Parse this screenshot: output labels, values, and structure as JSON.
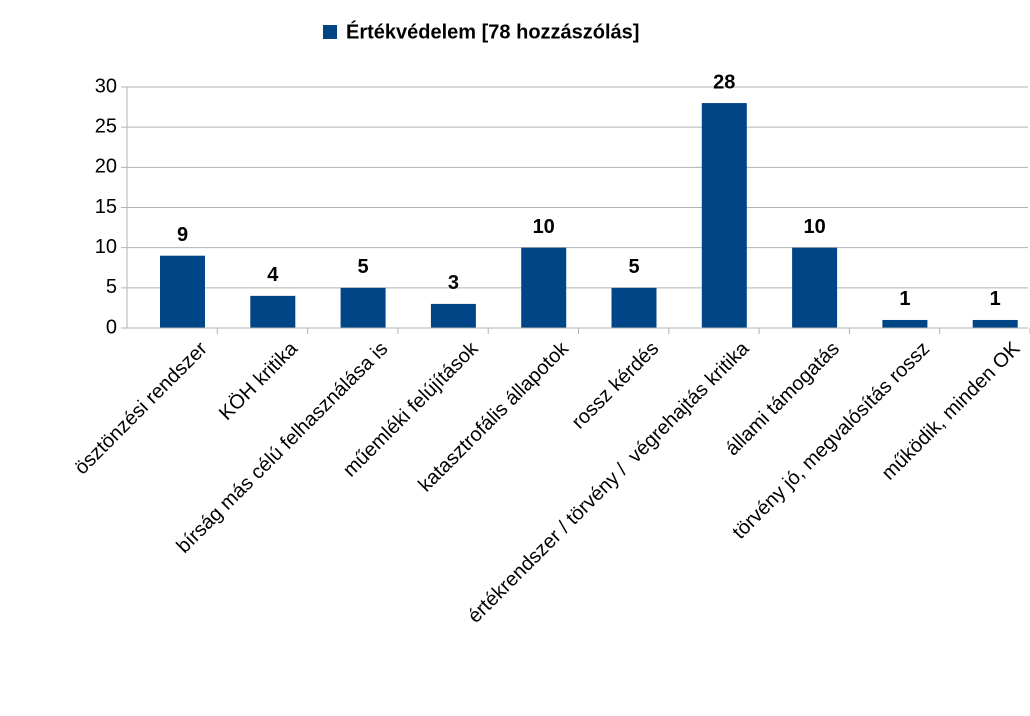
{
  "chart_data": {
    "type": "bar",
    "categories": [
      "ösztönzési rendszer",
      "KÖH kritika",
      "bírság más célú felhasználása is",
      "műemléki felújítások",
      "katasztrofális állapotok",
      "rossz kérdés",
      "értékrendszer / törvény /  végrehajtás kritika",
      "állami támogatás",
      "törvény jó, megvalósítás rossz",
      "működik, minden OK"
    ],
    "series": [
      {
        "name": "Értékvédelem [78 hozzászólás]",
        "color": "#004586",
        "values": [
          9,
          4,
          5,
          3,
          10,
          5,
          28,
          10,
          1,
          1
        ]
      }
    ],
    "ylim": [
      0,
      30
    ],
    "yticks": [
      0,
      5,
      10,
      15,
      20,
      25,
      30
    ],
    "grid": true
  }
}
